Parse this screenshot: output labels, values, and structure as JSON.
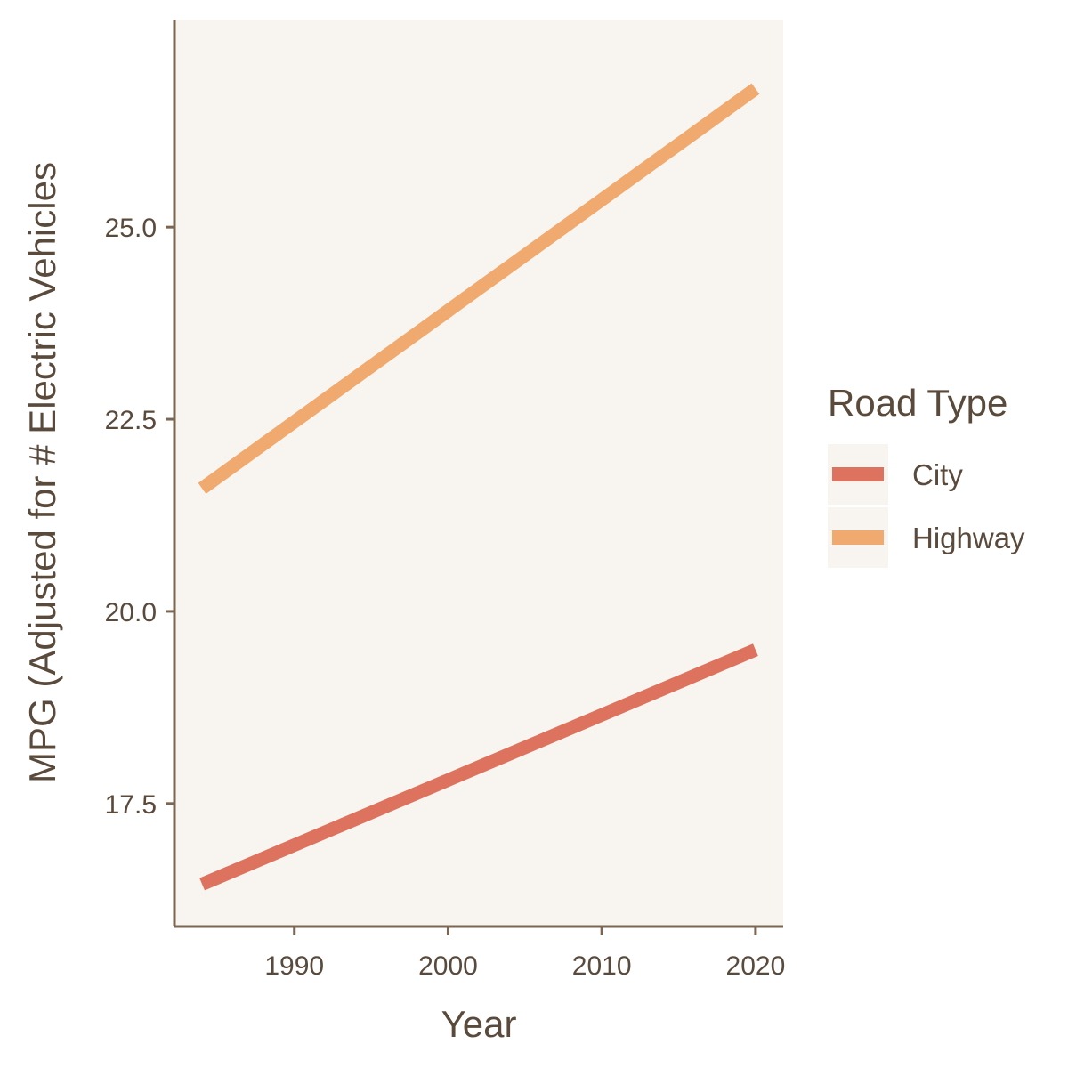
{
  "chart_data": {
    "type": "line",
    "xlabel": "Year",
    "ylabel": "MPG (Adjusted for # Electric Vehicles",
    "x": [
      1984,
      2020
    ],
    "series": [
      {
        "name": "City",
        "values": [
          16.45,
          19.5
        ],
        "color": "#dd735e"
      },
      {
        "name": "Highway",
        "values": [
          21.6,
          26.8
        ],
        "color": "#f0a96e"
      }
    ],
    "xlim": [
      1982.2,
      2021.8
    ],
    "ylim": [
      15.9,
      27.7
    ],
    "xticks": [
      "1990",
      "2000",
      "2010",
      "2020"
    ],
    "yticks": [
      "17.5",
      "20.0",
      "22.5",
      "25.0"
    ],
    "legend": {
      "title": "Road Type",
      "position": "right"
    },
    "grid": false,
    "colors": {
      "panel": "#f8f5f0",
      "axis": "#7a6652",
      "text": "#5a4a3c"
    }
  }
}
